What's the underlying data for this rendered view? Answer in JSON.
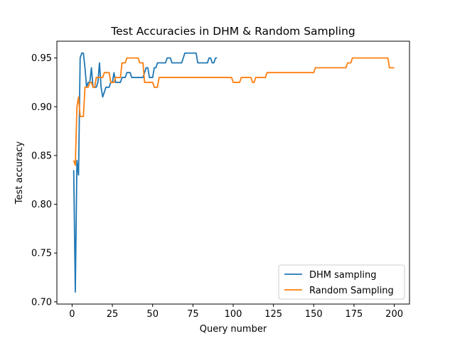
{
  "chart_data": {
    "type": "line",
    "title": "Test Accuracies in DHM & Random Sampling",
    "xlabel": "Query number",
    "ylabel": "Test accuracy",
    "xlim": [
      -9.45,
      209.45
    ],
    "ylim": [
      0.6977,
      0.9672
    ],
    "xticks": [
      0,
      25,
      50,
      75,
      100,
      125,
      150,
      175,
      200
    ],
    "yticks": [
      0.7,
      0.75,
      0.8,
      0.85,
      0.9,
      0.95
    ],
    "ytick_labels": [
      "0.70",
      "0.75",
      "0.80",
      "0.85",
      "0.90",
      "0.95"
    ],
    "grid": false,
    "legend_position": "lower-right",
    "series": [
      {
        "name": "DHM sampling",
        "color": "#1f77b4",
        "points": [
          [
            1,
            0.835
          ],
          [
            2,
            0.71
          ],
          [
            3,
            0.845
          ],
          [
            4,
            0.83
          ],
          [
            5,
            0.95
          ],
          [
            6,
            0.955
          ],
          [
            7,
            0.955
          ],
          [
            8,
            0.94
          ],
          [
            9,
            0.92
          ],
          [
            10,
            0.925
          ],
          [
            11,
            0.925
          ],
          [
            12,
            0.94
          ],
          [
            13,
            0.92
          ],
          [
            14,
            0.92
          ],
          [
            15,
            0.92
          ],
          [
            16,
            0.925
          ],
          [
            17,
            0.945
          ],
          [
            18,
            0.92
          ],
          [
            19,
            0.91
          ],
          [
            20,
            0.915
          ],
          [
            21,
            0.92
          ],
          [
            22,
            0.92
          ],
          [
            23,
            0.92
          ],
          [
            24,
            0.925
          ],
          [
            25,
            0.925
          ],
          [
            26,
            0.935
          ],
          [
            27,
            0.925
          ],
          [
            28,
            0.925
          ],
          [
            29,
            0.925
          ],
          [
            30,
            0.925
          ],
          [
            31,
            0.93
          ],
          [
            32,
            0.93
          ],
          [
            33,
            0.93
          ],
          [
            34,
            0.935
          ],
          [
            35,
            0.935
          ],
          [
            36,
            0.935
          ],
          [
            37,
            0.93
          ],
          [
            38,
            0.93
          ],
          [
            39,
            0.93
          ],
          [
            40,
            0.93
          ],
          [
            41,
            0.93
          ],
          [
            42,
            0.93
          ],
          [
            43,
            0.93
          ],
          [
            44,
            0.93
          ],
          [
            45,
            0.935
          ],
          [
            46,
            0.94
          ],
          [
            47,
            0.94
          ],
          [
            48,
            0.93
          ],
          [
            49,
            0.93
          ],
          [
            50,
            0.93
          ],
          [
            51,
            0.94
          ],
          [
            52,
            0.94
          ],
          [
            53,
            0.945
          ],
          [
            54,
            0.945
          ],
          [
            55,
            0.945
          ],
          [
            56,
            0.945
          ],
          [
            57,
            0.945
          ],
          [
            58,
            0.945
          ],
          [
            59,
            0.95
          ],
          [
            60,
            0.95
          ],
          [
            61,
            0.95
          ],
          [
            62,
            0.945
          ],
          [
            63,
            0.945
          ],
          [
            64,
            0.945
          ],
          [
            65,
            0.945
          ],
          [
            66,
            0.945
          ],
          [
            67,
            0.945
          ],
          [
            68,
            0.945
          ],
          [
            69,
            0.95
          ],
          [
            70,
            0.955
          ],
          [
            71,
            0.955
          ],
          [
            72,
            0.955
          ],
          [
            73,
            0.955
          ],
          [
            74,
            0.955
          ],
          [
            75,
            0.955
          ],
          [
            76,
            0.955
          ],
          [
            77,
            0.955
          ],
          [
            78,
            0.945
          ],
          [
            79,
            0.945
          ],
          [
            80,
            0.945
          ],
          [
            81,
            0.945
          ],
          [
            82,
            0.945
          ],
          [
            83,
            0.945
          ],
          [
            84,
            0.945
          ],
          [
            85,
            0.95
          ],
          [
            86,
            0.95
          ],
          [
            87,
            0.945
          ],
          [
            88,
            0.945
          ],
          [
            89,
            0.95
          ],
          [
            90,
            0.95
          ]
        ]
      },
      {
        "name": "Random Sampling",
        "color": "#ff7f0e",
        "points": [
          [
            1,
            0.845
          ],
          [
            2,
            0.84
          ],
          [
            3,
            0.9
          ],
          [
            4,
            0.91
          ],
          [
            5,
            0.89
          ],
          [
            6,
            0.89
          ],
          [
            7,
            0.89
          ],
          [
            8,
            0.92
          ],
          [
            9,
            0.92
          ],
          [
            10,
            0.92
          ],
          [
            11,
            0.925
          ],
          [
            12,
            0.925
          ],
          [
            13,
            0.92
          ],
          [
            14,
            0.92
          ],
          [
            15,
            0.93
          ],
          [
            16,
            0.93
          ],
          [
            17,
            0.93
          ],
          [
            18,
            0.93
          ],
          [
            19,
            0.93
          ],
          [
            20,
            0.935
          ],
          [
            21,
            0.935
          ],
          [
            22,
            0.935
          ],
          [
            23,
            0.935
          ],
          [
            24,
            0.925
          ],
          [
            25,
            0.925
          ],
          [
            26,
            0.925
          ],
          [
            27,
            0.93
          ],
          [
            28,
            0.93
          ],
          [
            29,
            0.93
          ],
          [
            30,
            0.93
          ],
          [
            31,
            0.945
          ],
          [
            32,
            0.945
          ],
          [
            33,
            0.945
          ],
          [
            34,
            0.95
          ],
          [
            35,
            0.95
          ],
          [
            36,
            0.95
          ],
          [
            37,
            0.95
          ],
          [
            38,
            0.95
          ],
          [
            39,
            0.95
          ],
          [
            40,
            0.95
          ],
          [
            41,
            0.95
          ],
          [
            42,
            0.945
          ],
          [
            43,
            0.945
          ],
          [
            44,
            0.945
          ],
          [
            45,
            0.925
          ],
          [
            46,
            0.925
          ],
          [
            47,
            0.925
          ],
          [
            48,
            0.925
          ],
          [
            49,
            0.925
          ],
          [
            50,
            0.925
          ],
          [
            51,
            0.92
          ],
          [
            52,
            0.92
          ],
          [
            53,
            0.92
          ],
          [
            54,
            0.93
          ],
          [
            60,
            0.93
          ],
          [
            70,
            0.93
          ],
          [
            80,
            0.93
          ],
          [
            90,
            0.93
          ],
          [
            99,
            0.93
          ],
          [
            100,
            0.925
          ],
          [
            101,
            0.925
          ],
          [
            104,
            0.925
          ],
          [
            105,
            0.93
          ],
          [
            110,
            0.93
          ],
          [
            111,
            0.93
          ],
          [
            112,
            0.925
          ],
          [
            113,
            0.925
          ],
          [
            114,
            0.93
          ],
          [
            120,
            0.93
          ],
          [
            121,
            0.935
          ],
          [
            122,
            0.935
          ],
          [
            130,
            0.935
          ],
          [
            140,
            0.935
          ],
          [
            150,
            0.935
          ],
          [
            151,
            0.94
          ],
          [
            160,
            0.94
          ],
          [
            170,
            0.94
          ],
          [
            171,
            0.945
          ],
          [
            172,
            0.945
          ],
          [
            173,
            0.945
          ],
          [
            174,
            0.95
          ],
          [
            180,
            0.95
          ],
          [
            190,
            0.95
          ],
          [
            196,
            0.95
          ],
          [
            197,
            0.94
          ],
          [
            200,
            0.94
          ]
        ]
      }
    ]
  }
}
